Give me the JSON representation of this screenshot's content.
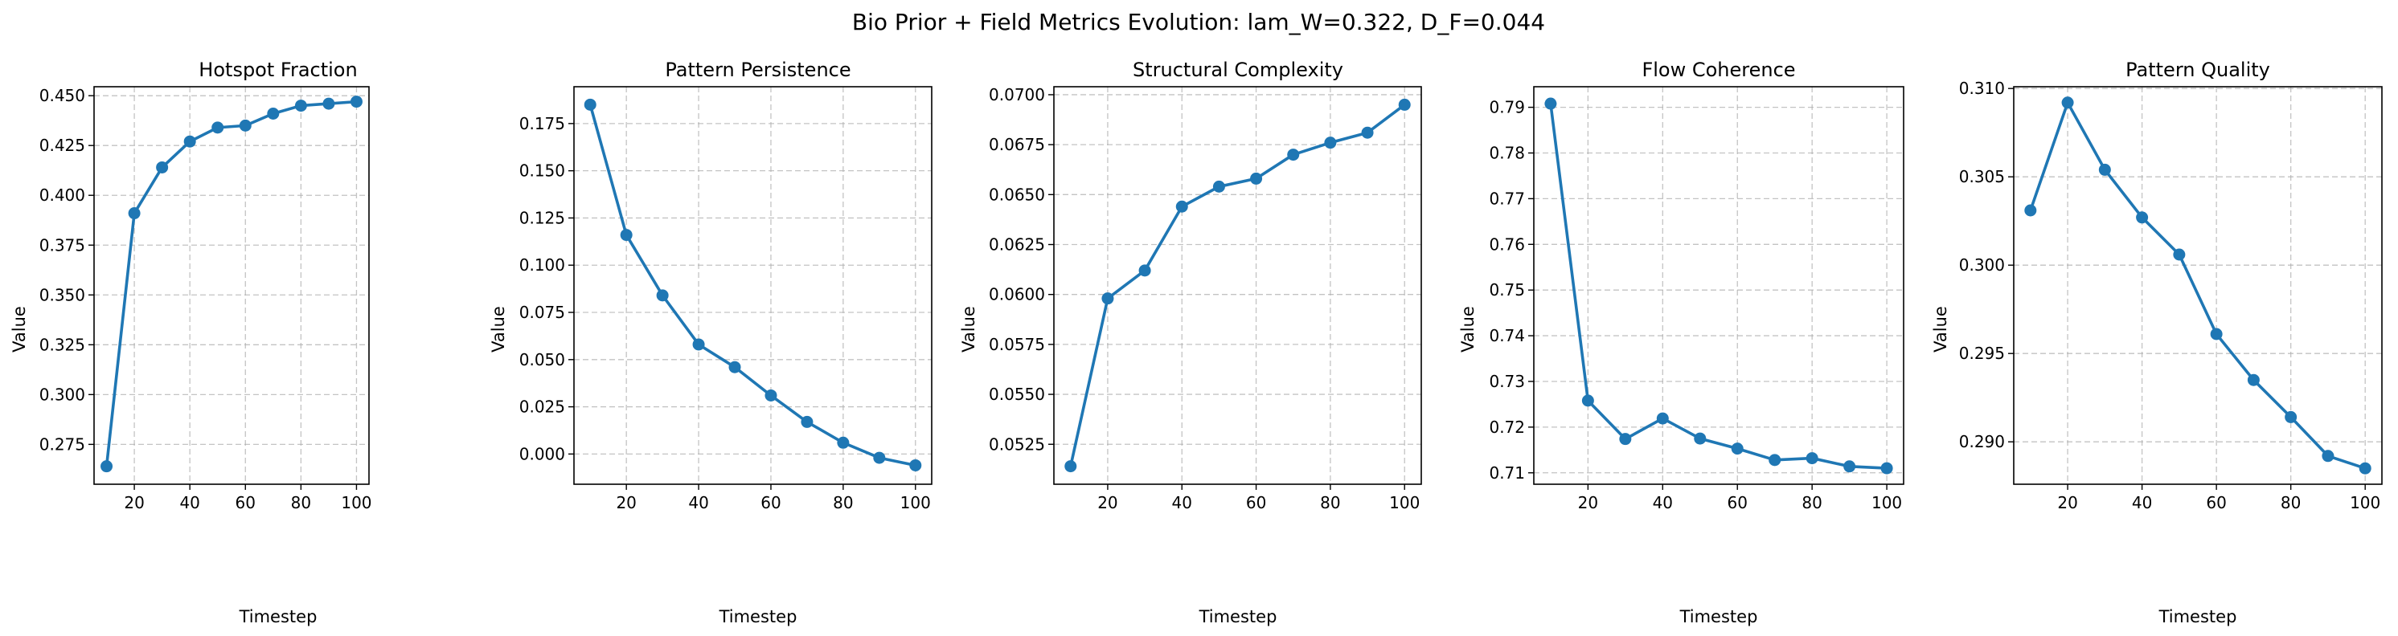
{
  "figure": {
    "title": "Bio Prior + Field Metrics Evolution: lam_W=0.322, D_F=0.044",
    "line_color": "#1f77b4"
  },
  "chart_data": [
    {
      "type": "line",
      "title": "Hotspot Fraction",
      "xlabel": "Timestep",
      "ylabel": "Value",
      "x": [
        10,
        20,
        30,
        40,
        50,
        60,
        70,
        80,
        90,
        100
      ],
      "values": [
        0.264,
        0.391,
        0.414,
        0.427,
        0.434,
        0.435,
        0.441,
        0.445,
        0.446,
        0.447
      ],
      "xlim": [
        5.5,
        104.5
      ],
      "ylim": [
        0.255,
        0.4545
      ],
      "xticks": [
        20,
        40,
        60,
        80,
        100
      ],
      "yticks": [
        0.275,
        0.3,
        0.325,
        0.35,
        0.375,
        0.4,
        0.425,
        0.45
      ],
      "ytick_labels": [
        "0.275",
        "0.300",
        "0.325",
        "0.350",
        "0.375",
        "0.400",
        "0.425",
        "0.450"
      ],
      "grid": true
    },
    {
      "type": "line",
      "title": "Pattern Persistence",
      "xlabel": "Timestep",
      "ylabel": "Value",
      "x": [
        10,
        20,
        30,
        40,
        50,
        60,
        70,
        80,
        90,
        100
      ],
      "values": [
        0.185,
        0.116,
        0.084,
        0.058,
        0.046,
        0.031,
        0.017,
        0.006,
        -0.002,
        -0.006
      ],
      "xlim": [
        5.5,
        104.5
      ],
      "ylim": [
        -0.016,
        0.1945
      ],
      "xticks": [
        20,
        40,
        60,
        80,
        100
      ],
      "yticks": [
        0.0,
        0.025,
        0.05,
        0.075,
        0.1,
        0.125,
        0.15,
        0.175
      ],
      "ytick_labels": [
        "0.000",
        "0.025",
        "0.050",
        "0.075",
        "0.100",
        "0.125",
        "0.150",
        "0.175"
      ],
      "grid": true
    },
    {
      "type": "line",
      "title": "Structural Complexity",
      "xlabel": "Timestep",
      "ylabel": "Value",
      "x": [
        10,
        20,
        30,
        40,
        50,
        60,
        70,
        80,
        90,
        100
      ],
      "values": [
        0.0514,
        0.0598,
        0.0612,
        0.0644,
        0.0654,
        0.0658,
        0.067,
        0.0676,
        0.0681,
        0.0695
      ],
      "xlim": [
        5.5,
        104.5
      ],
      "ylim": [
        0.0505,
        0.0704
      ],
      "xticks": [
        20,
        40,
        60,
        80,
        100
      ],
      "yticks": [
        0.0525,
        0.055,
        0.0575,
        0.06,
        0.0625,
        0.065,
        0.0675,
        0.07
      ],
      "ytick_labels": [
        "0.0525",
        "0.0550",
        "0.0575",
        "0.0600",
        "0.0625",
        "0.0650",
        "0.0675",
        "0.0700"
      ],
      "grid": true
    },
    {
      "type": "line",
      "title": "Flow Coherence",
      "xlabel": "Timestep",
      "ylabel": "Value",
      "x": [
        10,
        20,
        30,
        40,
        50,
        60,
        70,
        80,
        90,
        100
      ],
      "values": [
        0.7908,
        0.7258,
        0.7174,
        0.7219,
        0.7175,
        0.7153,
        0.7128,
        0.7132,
        0.7114,
        0.711
      ],
      "xlim": [
        5.5,
        104.5
      ],
      "ylim": [
        0.7075,
        0.7945
      ],
      "xticks": [
        20,
        40,
        60,
        80,
        100
      ],
      "yticks": [
        0.71,
        0.72,
        0.73,
        0.74,
        0.75,
        0.76,
        0.77,
        0.78,
        0.79
      ],
      "ytick_labels": [
        "0.71",
        "0.72",
        "0.73",
        "0.74",
        "0.75",
        "0.76",
        "0.77",
        "0.78",
        "0.79"
      ],
      "grid": true
    },
    {
      "type": "line",
      "title": "Pattern Quality",
      "xlabel": "Timestep",
      "ylabel": "Value",
      "x": [
        10,
        20,
        30,
        40,
        50,
        60,
        70,
        80,
        90,
        100
      ],
      "values": [
        0.3031,
        0.3092,
        0.3054,
        0.3027,
        0.3006,
        0.2961,
        0.2935,
        0.2914,
        0.2892,
        0.2885
      ],
      "xlim": [
        5.5,
        104.5
      ],
      "ylim": [
        0.2876,
        0.3101
      ],
      "xticks": [
        20,
        40,
        60,
        80,
        100
      ],
      "yticks": [
        0.29,
        0.295,
        0.3,
        0.305,
        0.31
      ],
      "ytick_labels": [
        "0.290",
        "0.295",
        "0.300",
        "0.305",
        "0.310"
      ],
      "grid": true
    }
  ]
}
